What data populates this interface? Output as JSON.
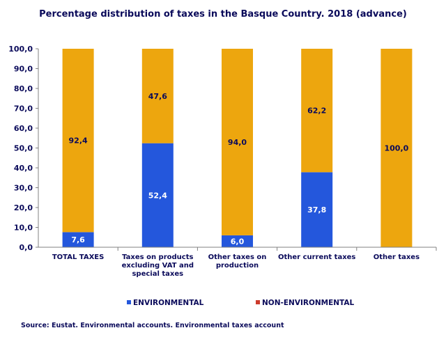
{
  "chart_data": {
    "type": "bar",
    "stacked": true,
    "title": "Percentage distribution  of taxes in the Basque Country. 2018 (advance)",
    "categories": [
      [
        "TOTAL TAXES"
      ],
      [
        "Taxes on products",
        "excluding VAT and",
        "special taxes"
      ],
      [
        "Other taxes on",
        "production"
      ],
      [
        "Other current taxes"
      ],
      [
        "Other taxes"
      ]
    ],
    "series": [
      {
        "name": "ENVIRONMENTAL",
        "values": [
          7.6,
          52.4,
          6.0,
          37.8,
          0.0
        ],
        "color": "#2457dc",
        "labels": [
          "7,6",
          "52,4",
          "6,0",
          "37,8",
          ""
        ]
      },
      {
        "name": "NON-ENVIRONMENTAL",
        "values": [
          92.4,
          47.6,
          94.0,
          62.2,
          100.0
        ],
        "color": "#eda60e",
        "legend_color": "#cc3b2c",
        "labels": [
          "92,4",
          "47,6",
          "94,0",
          "62,2",
          "100,0"
        ]
      }
    ],
    "ylim": [
      0,
      100
    ],
    "yticks": [
      "0,0",
      "10,0",
      "20,0",
      "30,0",
      "40,0",
      "50,0",
      "60,0",
      "70,0",
      "80,0",
      "90,0",
      "100,0"
    ],
    "legend_position": "bottom",
    "grid": false
  },
  "source": "Source: Eustat. Environmental  accounts. Environmental  taxes account"
}
